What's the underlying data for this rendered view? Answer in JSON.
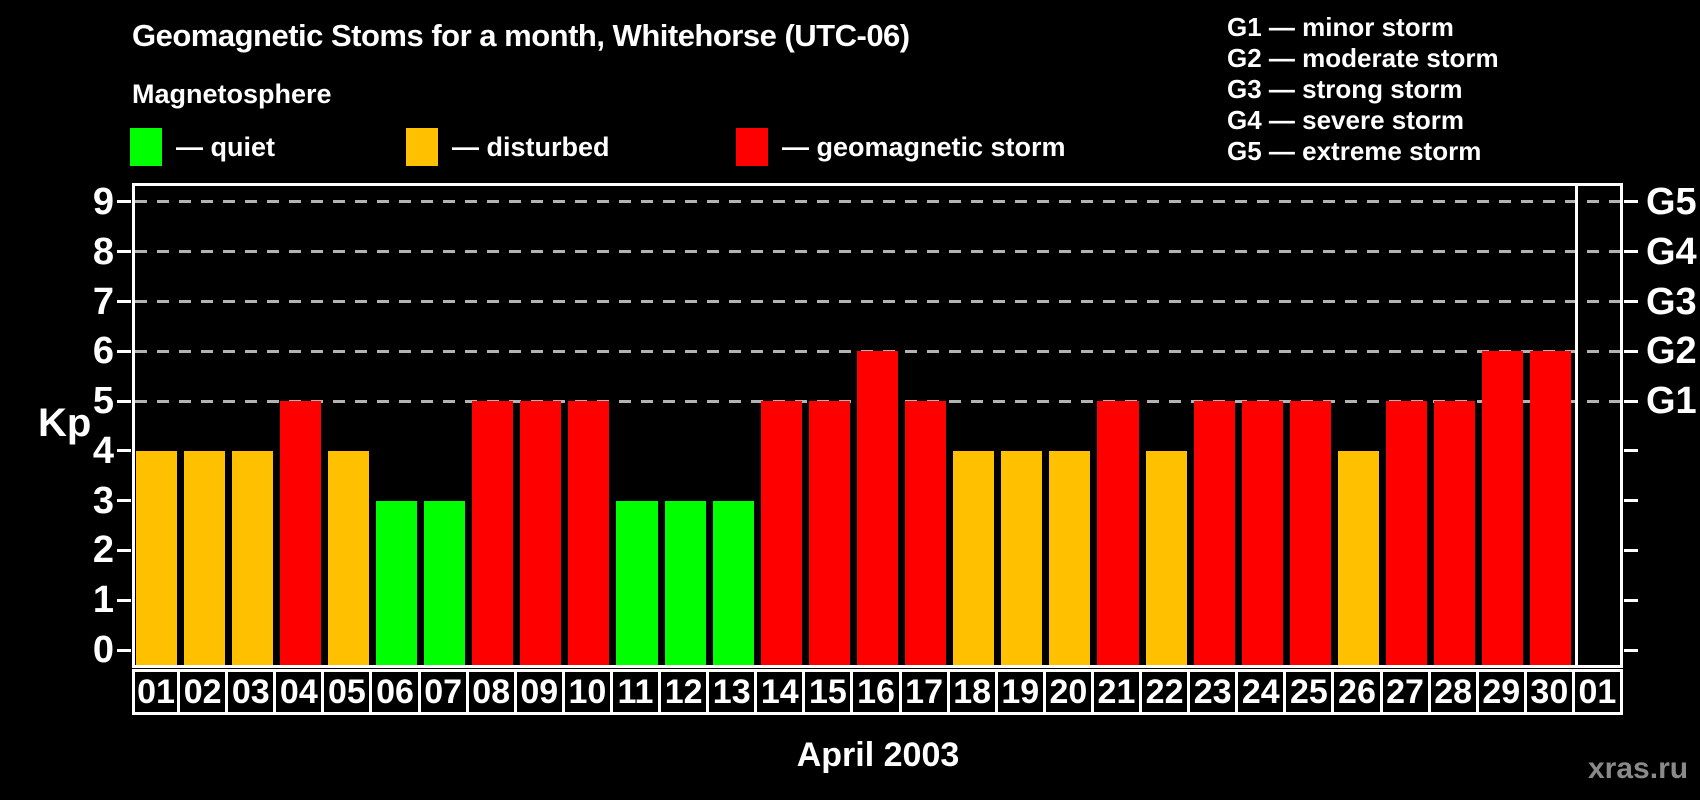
{
  "title": "Geomagnetic Stoms for a month, Whitehorse (UTC-06)",
  "legend": {
    "heading": "Magnetosphere",
    "items": [
      {
        "name": "quiet",
        "label": "— quiet",
        "color": "#00ff00"
      },
      {
        "name": "disturbed",
        "label": "— disturbed",
        "color": "#ffc000"
      },
      {
        "name": "storm",
        "label": "— geomagnetic storm",
        "color": "#ff0000"
      }
    ]
  },
  "gscale_legend": [
    "G1 — minor storm",
    "G2 — moderate storm",
    "G3 — strong storm",
    "G4 — severe storm",
    "G5 — extreme storm"
  ],
  "watermark": "xras.ru",
  "colors": {
    "background": "#000000",
    "quiet": "#00ff00",
    "disturbed": "#ffc000",
    "storm": "#ff0000",
    "frame": "#ffffff",
    "grid": "#b3b3b3",
    "watermark": "#8a8a8a"
  },
  "chart_data": {
    "type": "bar",
    "title": "Geomagnetic Stoms for a month, Whitehorse (UTC-06)",
    "xlabel": "April 2003",
    "ylabel": "Kp",
    "ylim": [
      0,
      9
    ],
    "y_ticks": [
      0,
      1,
      2,
      3,
      4,
      5,
      6,
      7,
      8,
      9
    ],
    "grid_levels": [
      5,
      6,
      7,
      8,
      9
    ],
    "grid_style": "dashed",
    "legend_position": "top-left",
    "categories": [
      "01",
      "02",
      "03",
      "04",
      "05",
      "06",
      "07",
      "08",
      "09",
      "10",
      "11",
      "12",
      "13",
      "14",
      "15",
      "16",
      "17",
      "18",
      "19",
      "20",
      "21",
      "22",
      "23",
      "24",
      "25",
      "26",
      "27",
      "28",
      "29",
      "30",
      "01"
    ],
    "values": [
      4,
      4,
      4,
      5,
      4,
      3,
      3,
      5,
      5,
      5,
      3,
      3,
      3,
      5,
      5,
      6,
      5,
      4,
      4,
      4,
      5,
      4,
      5,
      5,
      5,
      4,
      5,
      5,
      6,
      6,
      null
    ],
    "statuses": [
      "disturbed",
      "disturbed",
      "disturbed",
      "storm",
      "disturbed",
      "quiet",
      "quiet",
      "storm",
      "storm",
      "storm",
      "quiet",
      "quiet",
      "quiet",
      "storm",
      "storm",
      "storm",
      "storm",
      "disturbed",
      "disturbed",
      "disturbed",
      "storm",
      "disturbed",
      "storm",
      "storm",
      "storm",
      "disturbed",
      "storm",
      "storm",
      "storm",
      "storm",
      null
    ],
    "color_rule": {
      "quiet_max_kp": 3,
      "disturbed_kp": 4,
      "storm_min_kp": 5
    },
    "right_axis_labels": [
      {
        "kp": 5,
        "label": "G1"
      },
      {
        "kp": 6,
        "label": "G2"
      },
      {
        "kp": 7,
        "label": "G3"
      },
      {
        "kp": 8,
        "label": "G4"
      },
      {
        "kp": 9,
        "label": "G5"
      }
    ]
  }
}
